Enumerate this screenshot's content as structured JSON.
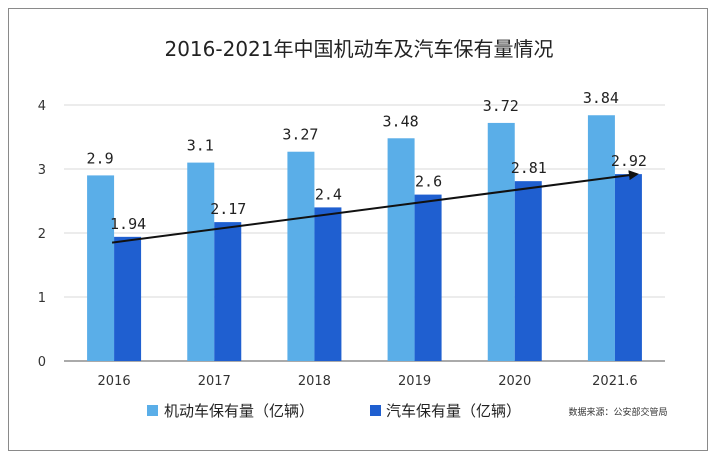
{
  "chart_data": {
    "type": "bar",
    "title": "2016-2021年中国机动车及汽车保有量情况",
    "categories": [
      "2016",
      "2017",
      "2018",
      "2019",
      "2020",
      "2021.6"
    ],
    "series": [
      {
        "name": "机动车保有量（亿辆）",
        "values": [
          2.9,
          3.1,
          3.27,
          3.48,
          3.72,
          3.84
        ],
        "labels": [
          "2.9",
          "3.1",
          "3.27",
          "3.48",
          "3.72",
          "3.84"
        ],
        "color": "#5aaee8"
      },
      {
        "name": "汽车保有量（亿辆）",
        "values": [
          1.94,
          2.17,
          2.4,
          2.6,
          2.81,
          2.92
        ],
        "labels": [
          "1.94",
          "2.17",
          "2.4",
          "2.6",
          "2.81",
          "2.92"
        ],
        "color": "#1f5fd0"
      }
    ],
    "ylim": [
      0,
      4
    ],
    "yticks": [
      "0",
      "1",
      "2",
      "3",
      "4"
    ],
    "trend_arrow": {
      "from_value": 1.85,
      "to_value": 2.92
    },
    "source_note": "数据来源：公安部交管局",
    "xlabel": "",
    "ylabel": ""
  }
}
